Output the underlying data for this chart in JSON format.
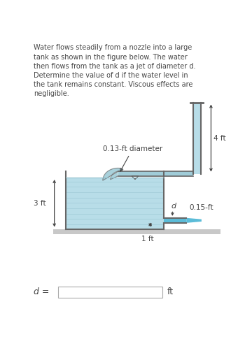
{
  "text_title": "Water flows steadily from a nozzle into a large\ntank as shown in the figure below. The water\nthen flows from the tank as a jet of diameter d.\nDetermine the value of d if the water level in\nthe tank remains constant. Viscous effects are\nnegligible.",
  "label_nozzle_diam": "0.13-ft diameter",
  "label_4ft": "4 ft",
  "label_015ft": "0.15-ft",
  "label_3ft": "3 ft",
  "label_1ft": "1 ft",
  "label_d": "d",
  "label_d_eq": "d =",
  "label_ft": "ft",
  "bg_color": "#ffffff",
  "water_color": "#b8dde8",
  "tank_wall_color": "#666666",
  "ground_color": "#c8c8c8",
  "jet_color": "#5bbcd8",
  "text_color": "#444444",
  "dim_color": "#444444",
  "wave_color": "#90c0cc",
  "nozzle_water_color": "#a0ccd8"
}
